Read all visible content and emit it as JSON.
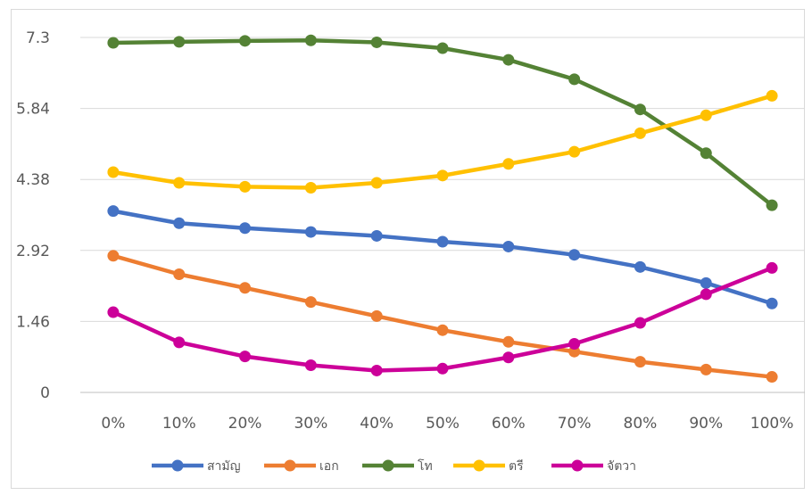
{
  "chart_data": {
    "type": "line",
    "title": "",
    "xlabel": "",
    "ylabel": "",
    "categories": [
      "0%",
      "10%",
      "20%",
      "30%",
      "40%",
      "50%",
      "60%",
      "70%",
      "80%",
      "90%",
      "100%"
    ],
    "y_ticks": [
      "0",
      "1.46",
      "2.92",
      "4.38",
      "5.84",
      "7.3"
    ],
    "ylim": [
      0,
      7.3
    ],
    "grid": true,
    "legend_position": "bottom",
    "series": [
      {
        "name": "สามัญ",
        "color": "#4472C4",
        "values": [
          3.73,
          3.48,
          3.38,
          3.3,
          3.22,
          3.1,
          3.0,
          2.83,
          2.58,
          2.25,
          1.83
        ]
      },
      {
        "name": "เอก",
        "color": "#ED7D31",
        "values": [
          2.81,
          2.43,
          2.15,
          1.86,
          1.57,
          1.28,
          1.04,
          0.84,
          0.63,
          0.47,
          0.32
        ]
      },
      {
        "name": "โท",
        "color": "#548235",
        "values": [
          7.19,
          7.21,
          7.23,
          7.24,
          7.2,
          7.08,
          6.84,
          6.44,
          5.82,
          4.92,
          3.85
        ]
      },
      {
        "name": "ตรี",
        "color": "#FFC000",
        "values": [
          4.53,
          4.31,
          4.23,
          4.21,
          4.31,
          4.46,
          4.7,
          4.95,
          5.33,
          5.7,
          6.1
        ]
      },
      {
        "name": "จัตวา",
        "color": "#CC0099",
        "values": [
          1.65,
          1.03,
          0.74,
          0.56,
          0.45,
          0.49,
          0.72,
          1.0,
          1.43,
          2.02,
          2.56
        ]
      }
    ]
  }
}
